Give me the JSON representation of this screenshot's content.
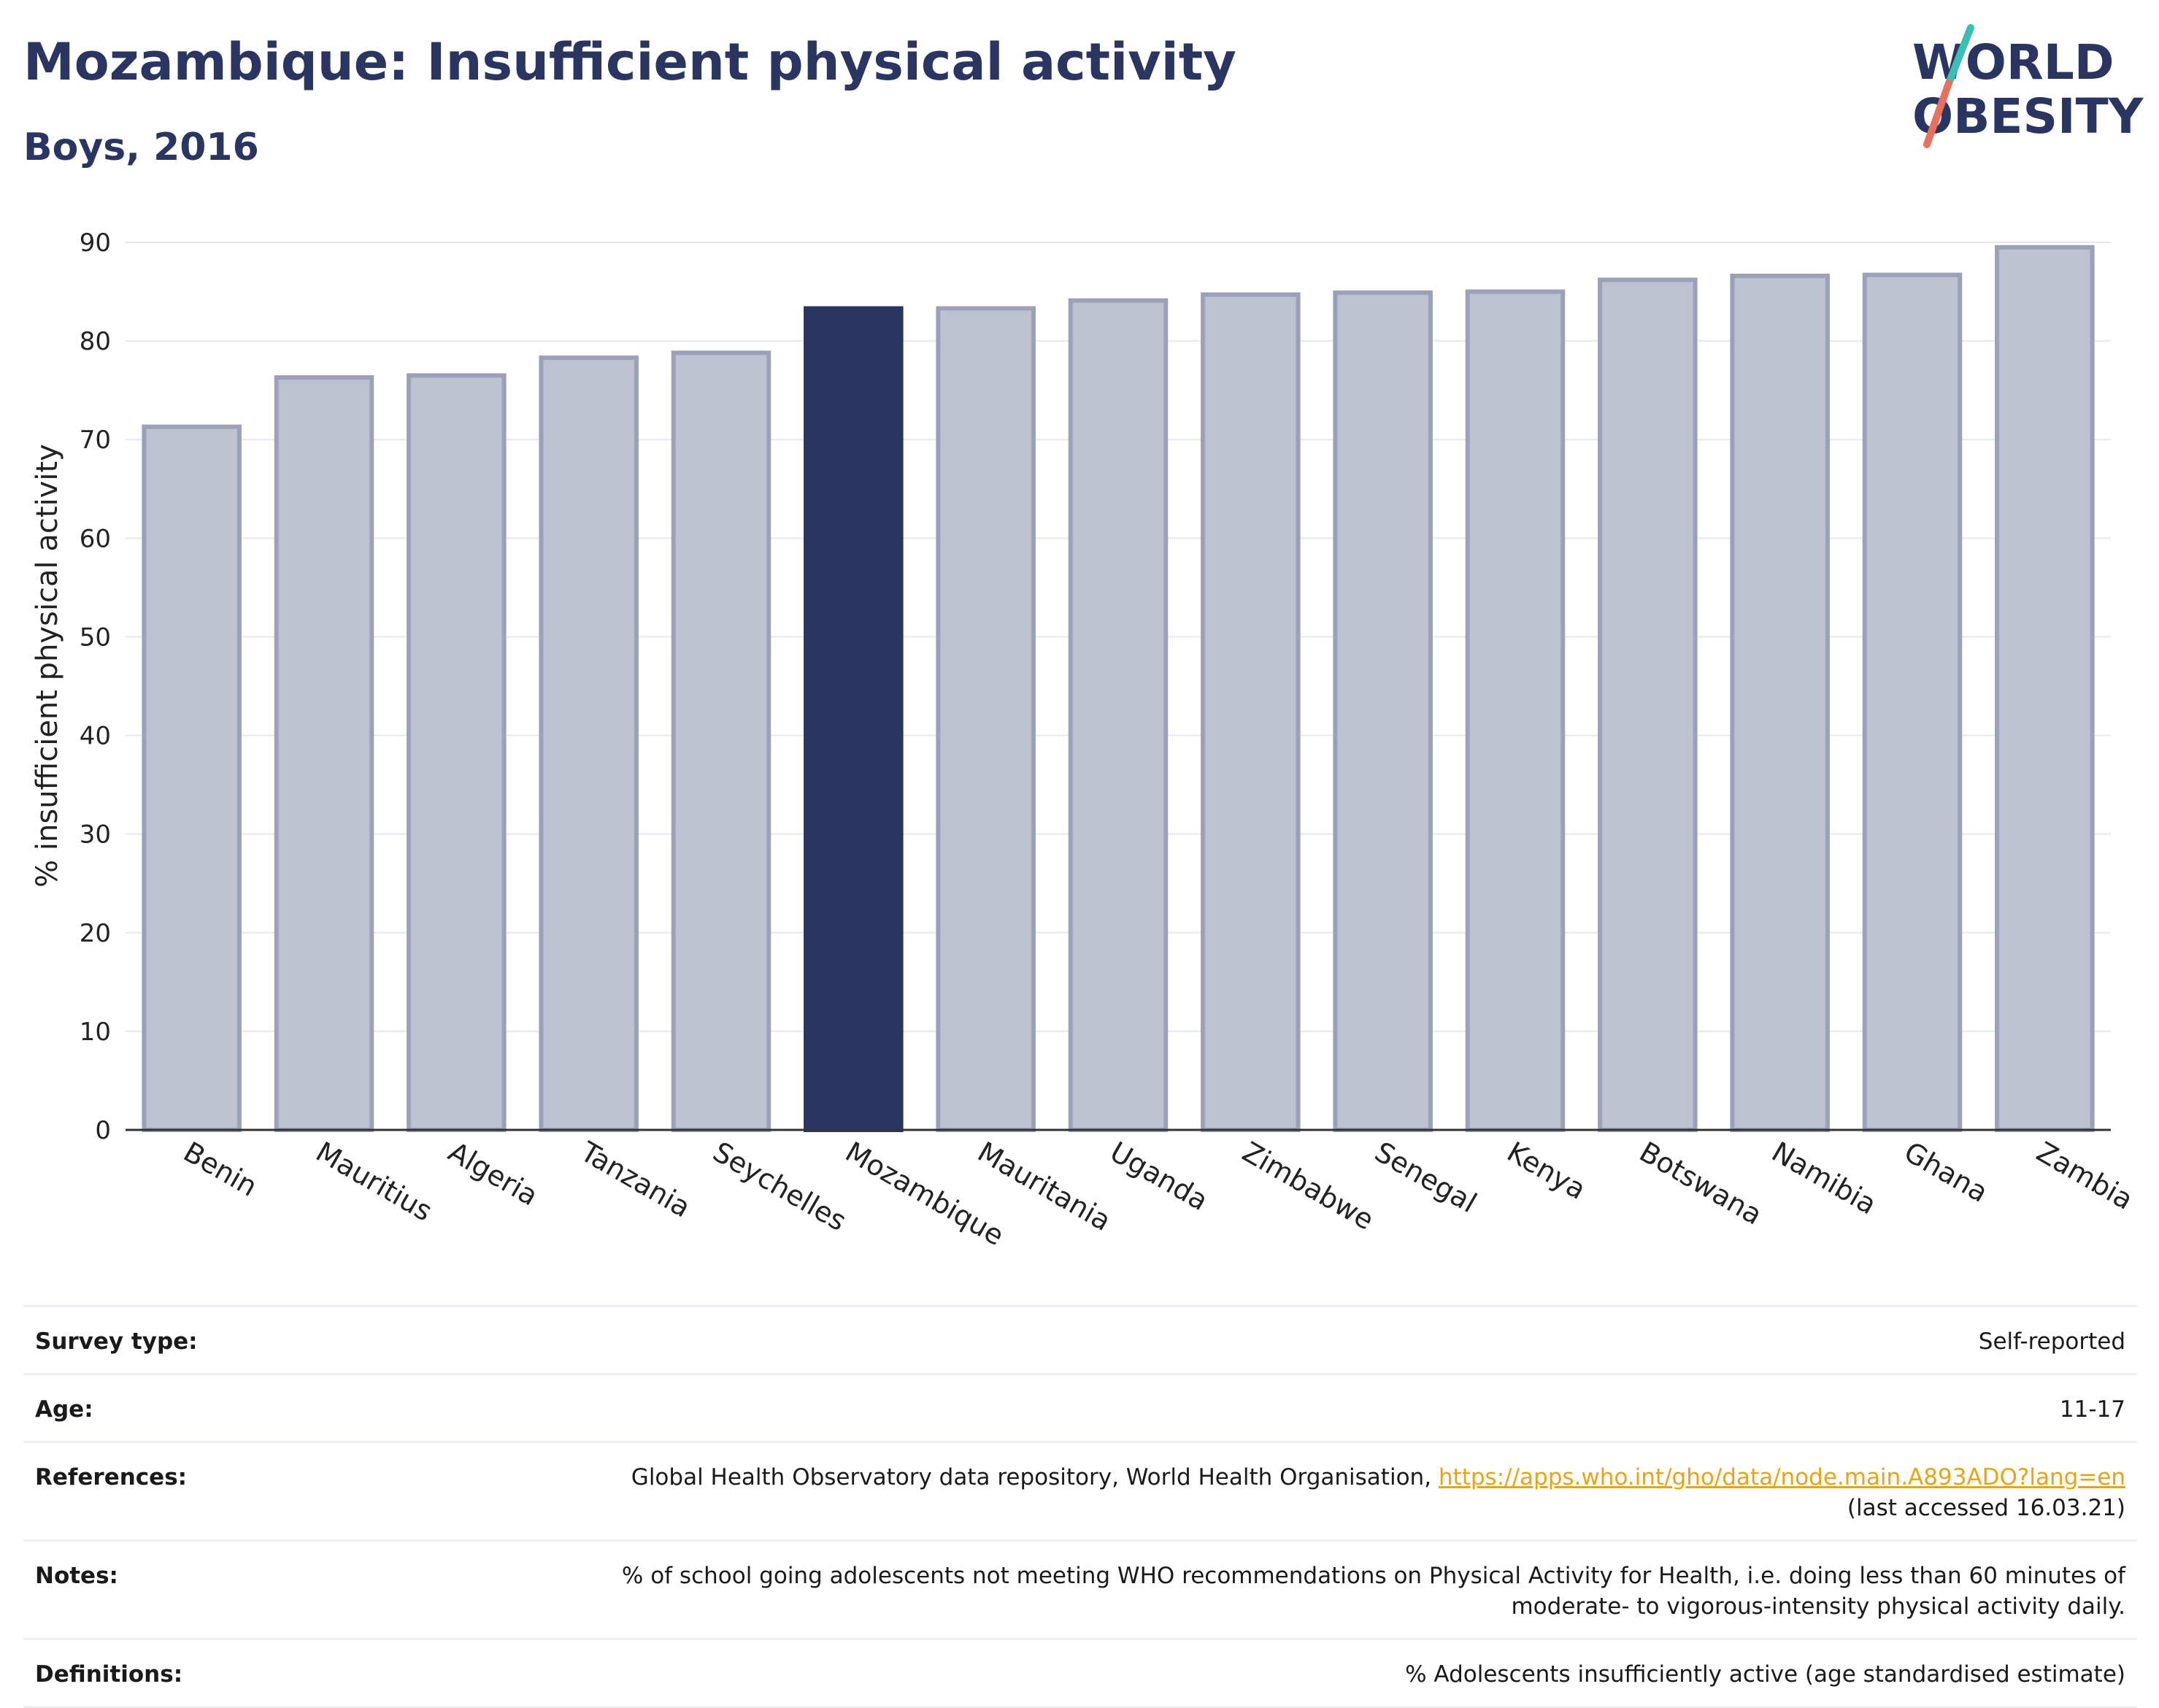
{
  "header": {
    "title": "Mozambique: Insufficient physical activity",
    "subtitle": "Boys, 2016",
    "logo_line1": "WORLD",
    "logo_line2": "OBESITY"
  },
  "colors": {
    "highlight": "#2b3561",
    "bar": "#bec1cf",
    "bar_border": "#9ba1b8",
    "title": "#2b3561",
    "link": "#e8a317",
    "logo_teal": "#3bbfb5",
    "logo_coral": "#e8705f"
  },
  "chart_data": {
    "type": "bar",
    "title": "",
    "xlabel": "",
    "ylabel": "% insufficient physical activity",
    "ylim": [
      0,
      90
    ],
    "yticks": [
      0,
      10,
      20,
      30,
      40,
      50,
      60,
      70,
      80,
      90
    ],
    "grid": true,
    "highlight_category": "Mozambique",
    "categories": [
      "Benin",
      "Mauritius",
      "Algeria",
      "Tanzania",
      "Seychelles",
      "Mozambique",
      "Mauritania",
      "Uganda",
      "Zimbabwe",
      "Senegal",
      "Kenya",
      "Botswana",
      "Namibia",
      "Ghana",
      "Zambia"
    ],
    "values": [
      71.3,
      76.3,
      76.5,
      78.3,
      78.8,
      83.3,
      83.3,
      84.1,
      84.7,
      84.9,
      85.0,
      86.2,
      86.6,
      86.7,
      89.5
    ]
  },
  "info": {
    "survey_type_label": "Survey type:",
    "survey_type_value": "Self-reported",
    "age_label": "Age:",
    "age_value": "11-17",
    "references_label": "References:",
    "references_text": "Global Health Observatory data repository, World Health Organisation, ",
    "references_link": "https://apps.who.int/gho/data/node.main.A893ADO?lang=en",
    "references_accessed": "(last accessed 16.03.21)",
    "notes_label": "Notes:",
    "notes_line1": "% of school going adolescents not meeting WHO recommendations on Physical Activity for Health, i.e. doing less than 60 minutes of",
    "notes_line2": "moderate- to vigorous-intensity physical activity daily.",
    "definitions_label": "Definitions:",
    "definitions_value": "% Adolescents insufficiently active (age standardised estimate)"
  }
}
